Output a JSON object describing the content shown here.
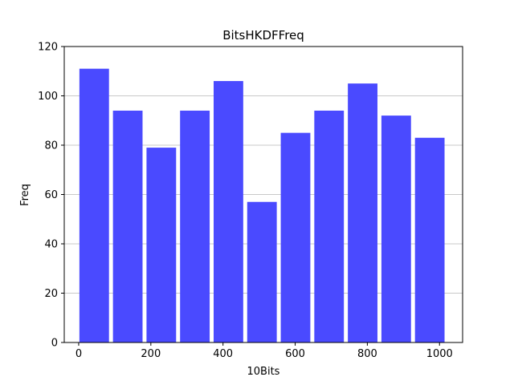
{
  "chart_data": {
    "type": "bar",
    "title": "BitsHKDFFreq",
    "xlabel": "10Bits",
    "ylabel": "Freq",
    "x": [
      43,
      136,
      229,
      322,
      415,
      508,
      601,
      694,
      787,
      880,
      973
    ],
    "values": [
      111,
      94,
      79,
      94,
      106,
      57,
      85,
      94,
      105,
      92,
      83
    ],
    "xlim": [
      -40,
      1064
    ],
    "ylim": [
      0,
      120
    ],
    "xticks": [
      0,
      200,
      400,
      600,
      800,
      1000
    ],
    "yticks": [
      0,
      20,
      40,
      60,
      80,
      100,
      120
    ],
    "grid": "y",
    "bar_color": "#4a4aff",
    "grid_color": "#c8c8c8"
  }
}
